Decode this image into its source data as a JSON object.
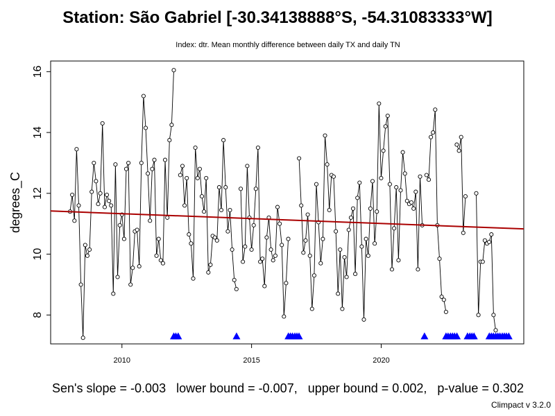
{
  "header": {
    "title": "Station: São Gabriel [-30.34138888°S, -54.31083333°W]",
    "subtitle": "Index: dtr. Mean monthly difference between daily TX and daily TN"
  },
  "footer": {
    "stats": "Sen's slope = -0.003   lower bound = -0.007,   upper bound = 0.002,   p-value = 0.302",
    "credit": "Climpact v 3.2.0"
  },
  "chart_data": {
    "type": "line",
    "title": "Station: São Gabriel [-30.34138888°S, -54.31083333°W]",
    "subtitle": "Index: dtr. Mean monthly difference between daily TX and daily TN",
    "xlabel": "",
    "ylabel": "degrees_C",
    "xlim": [
      2007.25,
      2025.5
    ],
    "ylim": [
      7.05,
      16.35
    ],
    "x_ticks": [
      2010,
      2015,
      2020
    ],
    "y_ticks": [
      8,
      10,
      12,
      14,
      16
    ],
    "grid": false,
    "colors": {
      "series": "#000000",
      "trend": "#aa0000",
      "missing": "#0000ff"
    },
    "series": [
      {
        "x_start": 2008.0,
        "x_step": 0.08333,
        "values": [
          11.4,
          11.95,
          11.1,
          13.45,
          11.6,
          9.0,
          7.25,
          10.3,
          9.95,
          10.15,
          12.05,
          13.0,
          12.4,
          11.65,
          12.0,
          14.3,
          11.55,
          11.95,
          11.75,
          11.6,
          8.7,
          12.95,
          9.25,
          10.95,
          11.3,
          10.5,
          12.8,
          13.0,
          9.0,
          9.55,
          10.75,
          10.8,
          9.6,
          13.0,
          15.2,
          14.15,
          12.65,
          11.1,
          12.8,
          13.1,
          9.95,
          10.5,
          9.8,
          9.7,
          13.1,
          11.2,
          13.75,
          14.25,
          16.05,
          null,
          null,
          12.6,
          12.9,
          11.6,
          12.5,
          10.65,
          10.35,
          9.2,
          13.5,
          12.5,
          12.8,
          11.9,
          11.4,
          12.5,
          9.4,
          9.65,
          10.6,
          10.55,
          10.45,
          12.2,
          11.45,
          13.75,
          12.2,
          10.75,
          11.45,
          10.15,
          9.15,
          8.85,
          null,
          12.15,
          9.75,
          10.25,
          12.9,
          11.2,
          10.15,
          10.95,
          12.15,
          13.5,
          9.75,
          9.85,
          8.95,
          10.55,
          11.2,
          10.15,
          9.8,
          9.95,
          11.55,
          11.0,
          10.3,
          7.95,
          9.05,
          10.5,
          null,
          null,
          null,
          null,
          13.15,
          11.6,
          10.05,
          10.45,
          11.3,
          9.95,
          8.2,
          9.3,
          12.3,
          11.05,
          9.7,
          10.5,
          13.9,
          12.95,
          11.45,
          12.6,
          12.55,
          10.75,
          8.7,
          10.15,
          8.2,
          9.9,
          9.25,
          10.8,
          11.2,
          11.5,
          9.35,
          11.85,
          12.35,
          10.25,
          7.85,
          10.5,
          9.95,
          11.5,
          12.4,
          10.35,
          11.4,
          14.95,
          12.5,
          13.4,
          14.2,
          14.55,
          12.3,
          9.5,
          10.85,
          12.2,
          9.8,
          12.1,
          13.35,
          12.65,
          11.75,
          11.65,
          11.7,
          11.5,
          12.05,
          9.5,
          12.55,
          10.95,
          null,
          12.6,
          12.45,
          13.85,
          14.0,
          14.75,
          10.95,
          9.85,
          8.6,
          8.5,
          8.1,
          null,
          null,
          null,
          null,
          13.6,
          13.4,
          13.85,
          10.7,
          11.9,
          null,
          null,
          null,
          null,
          12.0,
          8.0,
          9.75,
          9.75,
          10.45,
          10.35,
          10.4,
          10.65,
          8.0,
          7.5,
          null,
          null,
          null,
          null,
          null,
          null,
          null,
          null
        ]
      }
    ],
    "trend_line": {
      "x": [
        2007.25,
        2025.5
      ],
      "y": [
        11.42,
        10.83
      ]
    },
    "missing_markers": [
      2012.0,
      2012.08,
      2012.17,
      2014.42,
      2016.42,
      2016.5,
      2016.58,
      2016.67,
      2016.75,
      2016.83,
      2021.67,
      2022.5,
      2022.58,
      2022.67,
      2022.75,
      2022.83,
      2022.92,
      2023.33,
      2023.42,
      2023.5,
      2023.58,
      2024.17,
      2024.25,
      2024.33,
      2024.42,
      2024.5,
      2024.58,
      2024.67,
      2024.75,
      2024.83,
      2024.92
    ]
  }
}
